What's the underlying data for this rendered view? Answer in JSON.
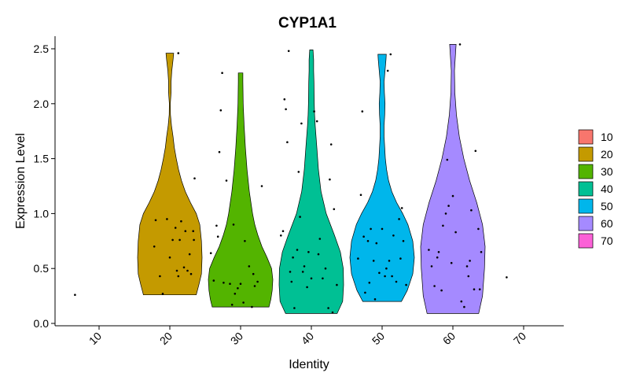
{
  "chart_data": {
    "type": "violin",
    "title": "CYP1A1",
    "xlabel": "Identity",
    "ylabel": "Expression Level",
    "categories": [
      "10",
      "20",
      "30",
      "40",
      "50",
      "60",
      "70"
    ],
    "ylim": [
      0,
      2.55
    ],
    "yticks": [
      "0.0",
      "0.5",
      "1.0",
      "1.5",
      "2.0",
      "2.5"
    ],
    "grid": false,
    "legend_position": "right",
    "colors": {
      "10": "#F8766D",
      "20": "#C49A00",
      "30": "#53B400",
      "40": "#00C094",
      "50": "#00B6EB",
      "60": "#A58AFF",
      "70": "#FB61D7"
    },
    "violins": [
      {
        "category": "20",
        "ymin": 0.26,
        "ymax": 2.46,
        "density": [
          [
            0.26,
            0.82
          ],
          [
            0.35,
            0.9
          ],
          [
            0.45,
            0.98
          ],
          [
            0.6,
            1.0
          ],
          [
            0.75,
            0.98
          ],
          [
            0.9,
            0.93
          ],
          [
            1.0,
            0.82
          ],
          [
            1.1,
            0.64
          ],
          [
            1.2,
            0.48
          ],
          [
            1.3,
            0.36
          ],
          [
            1.4,
            0.27
          ],
          [
            1.5,
            0.2
          ],
          [
            1.6,
            0.14
          ],
          [
            1.7,
            0.1
          ],
          [
            1.8,
            0.05
          ],
          [
            1.9,
            0.02
          ],
          [
            2.0,
            0.015
          ],
          [
            2.1,
            0.04
          ],
          [
            2.2,
            0.04
          ],
          [
            2.3,
            0.06
          ],
          [
            2.4,
            0.1
          ],
          [
            2.46,
            0.12
          ]
        ]
      },
      {
        "category": "30",
        "ymin": 0.15,
        "ymax": 2.28,
        "density": [
          [
            0.15,
            0.88
          ],
          [
            0.22,
            0.94
          ],
          [
            0.3,
            0.98
          ],
          [
            0.4,
            1.0
          ],
          [
            0.5,
            0.96
          ],
          [
            0.6,
            0.82
          ],
          [
            0.7,
            0.66
          ],
          [
            0.8,
            0.54
          ],
          [
            0.9,
            0.44
          ],
          [
            1.0,
            0.37
          ],
          [
            1.2,
            0.27
          ],
          [
            1.4,
            0.2
          ],
          [
            1.6,
            0.15
          ],
          [
            1.8,
            0.11
          ],
          [
            2.0,
            0.08
          ],
          [
            2.2,
            0.07
          ],
          [
            2.28,
            0.07
          ]
        ]
      },
      {
        "category": "40",
        "ymin": 0.09,
        "ymax": 2.49,
        "density": [
          [
            0.09,
            0.8
          ],
          [
            0.2,
            0.97
          ],
          [
            0.35,
            1.0
          ],
          [
            0.5,
            0.99
          ],
          [
            0.65,
            0.9
          ],
          [
            0.8,
            0.72
          ],
          [
            1.0,
            0.46
          ],
          [
            1.2,
            0.3
          ],
          [
            1.4,
            0.22
          ],
          [
            1.6,
            0.17
          ],
          [
            1.8,
            0.12
          ],
          [
            1.9,
            0.1
          ],
          [
            2.0,
            0.09
          ],
          [
            2.2,
            0.08
          ],
          [
            2.3,
            0.07
          ],
          [
            2.4,
            0.07
          ],
          [
            2.49,
            0.05
          ]
        ]
      },
      {
        "category": "50",
        "ymin": 0.2,
        "ymax": 2.45,
        "density": [
          [
            0.2,
            0.6
          ],
          [
            0.3,
            0.78
          ],
          [
            0.45,
            0.95
          ],
          [
            0.6,
            1.0
          ],
          [
            0.75,
            0.95
          ],
          [
            0.9,
            0.8
          ],
          [
            1.0,
            0.64
          ],
          [
            1.1,
            0.45
          ],
          [
            1.2,
            0.3
          ],
          [
            1.3,
            0.2
          ],
          [
            1.4,
            0.14
          ],
          [
            1.5,
            0.1
          ],
          [
            1.6,
            0.08
          ],
          [
            1.7,
            0.06
          ],
          [
            1.8,
            0.06
          ],
          [
            1.9,
            0.08
          ],
          [
            2.0,
            0.09
          ],
          [
            2.1,
            0.07
          ],
          [
            2.2,
            0.06
          ],
          [
            2.3,
            0.09
          ],
          [
            2.4,
            0.12
          ],
          [
            2.45,
            0.13
          ]
        ]
      },
      {
        "category": "60",
        "ymin": 0.09,
        "ymax": 2.54,
        "density": [
          [
            0.09,
            0.8
          ],
          [
            0.25,
            0.92
          ],
          [
            0.5,
            0.98
          ],
          [
            0.7,
            1.0
          ],
          [
            0.9,
            0.92
          ],
          [
            1.1,
            0.74
          ],
          [
            1.3,
            0.52
          ],
          [
            1.5,
            0.34
          ],
          [
            1.7,
            0.2
          ],
          [
            1.9,
            0.11
          ],
          [
            2.1,
            0.06
          ],
          [
            2.3,
            0.05
          ],
          [
            2.45,
            0.08
          ],
          [
            2.54,
            0.1
          ]
        ]
      }
    ],
    "points": [
      {
        "x": 0.66,
        "y": 0.26
      },
      {
        "x": 1.78,
        "y": 0.7
      },
      {
        "x": 1.8,
        "y": 0.94
      },
      {
        "x": 1.86,
        "y": 0.43
      },
      {
        "x": 1.9,
        "y": 0.27
      },
      {
        "x": 1.96,
        "y": 0.95
      },
      {
        "x": 2.0,
        "y": 0.6
      },
      {
        "x": 2.04,
        "y": 0.76
      },
      {
        "x": 2.08,
        "y": 0.87
      },
      {
        "x": 2.1,
        "y": 0.48
      },
      {
        "x": 2.12,
        "y": 0.43
      },
      {
        "x": 2.14,
        "y": 0.76
      },
      {
        "x": 2.16,
        "y": 0.93
      },
      {
        "x": 2.2,
        "y": 0.51
      },
      {
        "x": 2.22,
        "y": 0.84
      },
      {
        "x": 2.25,
        "y": 0.48
      },
      {
        "x": 2.28,
        "y": 0.63
      },
      {
        "x": 2.3,
        "y": 0.45
      },
      {
        "x": 2.33,
        "y": 0.84
      },
      {
        "x": 2.34,
        "y": 0.76
      },
      {
        "x": 2.35,
        "y": 1.32
      },
      {
        "x": 2.12,
        "y": 2.46
      },
      {
        "x": 2.58,
        "y": 0.64
      },
      {
        "x": 2.62,
        "y": 0.39
      },
      {
        "x": 2.66,
        "y": 0.89
      },
      {
        "x": 2.68,
        "y": 0.79
      },
      {
        "x": 2.7,
        "y": 1.56
      },
      {
        "x": 2.72,
        "y": 1.94
      },
      {
        "x": 2.74,
        "y": 2.28
      },
      {
        "x": 2.76,
        "y": 0.37
      },
      {
        "x": 2.8,
        "y": 1.3
      },
      {
        "x": 2.85,
        "y": 0.36
      },
      {
        "x": 2.88,
        "y": 0.17
      },
      {
        "x": 2.9,
        "y": 0.9
      },
      {
        "x": 2.92,
        "y": 0.27
      },
      {
        "x": 2.96,
        "y": 0.32
      },
      {
        "x": 3.0,
        "y": 0.36
      },
      {
        "x": 3.04,
        "y": 0.19
      },
      {
        "x": 3.06,
        "y": 0.75
      },
      {
        "x": 3.12,
        "y": 0.52
      },
      {
        "x": 3.16,
        "y": 0.15
      },
      {
        "x": 3.18,
        "y": 0.45
      },
      {
        "x": 3.2,
        "y": 0.34
      },
      {
        "x": 3.24,
        "y": 0.38
      },
      {
        "x": 3.3,
        "y": 1.25
      },
      {
        "x": 3.57,
        "y": 0.8
      },
      {
        "x": 3.6,
        "y": 0.84
      },
      {
        "x": 3.62,
        "y": 2.04
      },
      {
        "x": 3.64,
        "y": 1.95
      },
      {
        "x": 3.66,
        "y": 1.65
      },
      {
        "x": 3.68,
        "y": 2.48
      },
      {
        "x": 3.7,
        "y": 0.47
      },
      {
        "x": 3.72,
        "y": 0.38
      },
      {
        "x": 3.74,
        "y": 0.6
      },
      {
        "x": 3.76,
        "y": 0.14
      },
      {
        "x": 3.8,
        "y": 0.67
      },
      {
        "x": 3.82,
        "y": 1.38
      },
      {
        "x": 3.84,
        "y": 0.97
      },
      {
        "x": 3.86,
        "y": 1.82
      },
      {
        "x": 3.88,
        "y": 0.47
      },
      {
        "x": 3.9,
        "y": 0.52
      },
      {
        "x": 3.94,
        "y": 0.33
      },
      {
        "x": 3.96,
        "y": 0.65
      },
      {
        "x": 4.0,
        "y": 0.41
      },
      {
        "x": 4.04,
        "y": 1.93
      },
      {
        "x": 4.08,
        "y": 1.84
      },
      {
        "x": 4.1,
        "y": 0.63
      },
      {
        "x": 4.12,
        "y": 0.77
      },
      {
        "x": 4.16,
        "y": 0.41
      },
      {
        "x": 4.2,
        "y": 0.5
      },
      {
        "x": 4.24,
        "y": 0.14
      },
      {
        "x": 4.26,
        "y": 1.31
      },
      {
        "x": 4.28,
        "y": 1.63
      },
      {
        "x": 4.3,
        "y": 0.1
      },
      {
        "x": 4.32,
        "y": 1.04
      },
      {
        "x": 4.36,
        "y": 0.35
      },
      {
        "x": 4.66,
        "y": 0.59
      },
      {
        "x": 4.7,
        "y": 1.17
      },
      {
        "x": 4.72,
        "y": 1.93
      },
      {
        "x": 4.74,
        "y": 0.79
      },
      {
        "x": 4.76,
        "y": 0.28
      },
      {
        "x": 4.8,
        "y": 0.75
      },
      {
        "x": 4.82,
        "y": 0.37
      },
      {
        "x": 4.84,
        "y": 0.86
      },
      {
        "x": 4.88,
        "y": 0.57
      },
      {
        "x": 4.9,
        "y": 0.22
      },
      {
        "x": 4.92,
        "y": 0.73
      },
      {
        "x": 4.96,
        "y": 0.46
      },
      {
        "x": 5.0,
        "y": 0.86
      },
      {
        "x": 5.04,
        "y": 0.43
      },
      {
        "x": 5.06,
        "y": 0.5
      },
      {
        "x": 5.08,
        "y": 2.3
      },
      {
        "x": 5.1,
        "y": 0.57
      },
      {
        "x": 5.12,
        "y": 2.45
      },
      {
        "x": 5.14,
        "y": 0.43
      },
      {
        "x": 5.16,
        "y": 0.8
      },
      {
        "x": 5.2,
        "y": 0.38
      },
      {
        "x": 5.24,
        "y": 0.95
      },
      {
        "x": 5.26,
        "y": 0.59
      },
      {
        "x": 5.28,
        "y": 1.05
      },
      {
        "x": 5.3,
        "y": 0.75
      },
      {
        "x": 5.34,
        "y": 0.35
      },
      {
        "x": 5.66,
        "y": 0.67
      },
      {
        "x": 5.7,
        "y": 0.52
      },
      {
        "x": 5.74,
        "y": 0.34
      },
      {
        "x": 5.78,
        "y": 0.6
      },
      {
        "x": 5.8,
        "y": 0.65
      },
      {
        "x": 5.84,
        "y": 0.3
      },
      {
        "x": 5.86,
        "y": 0.89
      },
      {
        "x": 5.9,
        "y": 1.0
      },
      {
        "x": 5.92,
        "y": 1.49
      },
      {
        "x": 5.94,
        "y": 1.07
      },
      {
        "x": 5.98,
        "y": 0.55
      },
      {
        "x": 6.0,
        "y": 1.16
      },
      {
        "x": 6.04,
        "y": 0.83
      },
      {
        "x": 6.1,
        "y": 2.54
      },
      {
        "x": 6.12,
        "y": 0.2
      },
      {
        "x": 6.16,
        "y": 0.15
      },
      {
        "x": 6.2,
        "y": 0.52
      },
      {
        "x": 6.22,
        "y": 0.43
      },
      {
        "x": 6.24,
        "y": 0.57
      },
      {
        "x": 6.26,
        "y": 1.03
      },
      {
        "x": 6.3,
        "y": 0.31
      },
      {
        "x": 6.32,
        "y": 1.57
      },
      {
        "x": 6.36,
        "y": 0.86
      },
      {
        "x": 6.38,
        "y": 0.31
      },
      {
        "x": 6.4,
        "y": 0.65
      },
      {
        "x": 6.76,
        "y": 0.42
      }
    ],
    "legend": {
      "entries": [
        "10",
        "20",
        "30",
        "40",
        "50",
        "60",
        "70"
      ]
    }
  }
}
